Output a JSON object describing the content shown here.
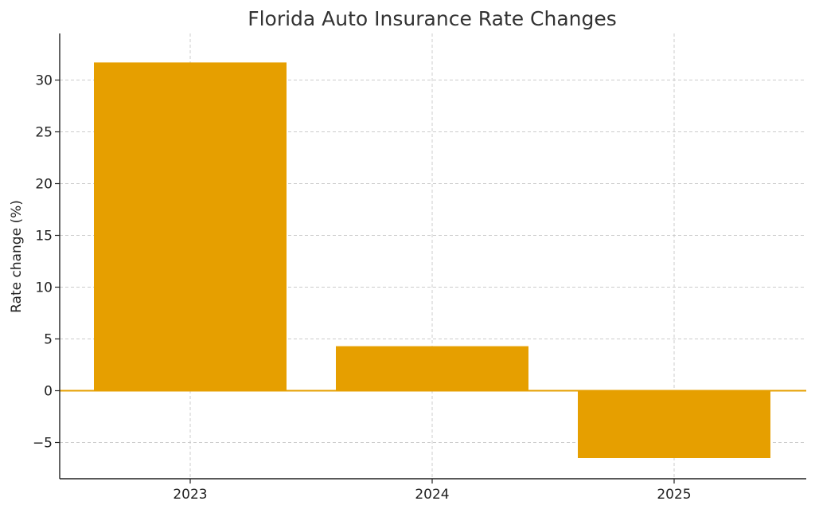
{
  "chart_data": {
    "type": "bar",
    "title": "Florida Auto Insurance Rate Changes",
    "xlabel": "",
    "ylabel": "Rate change (%)",
    "categories": [
      "2023",
      "2024",
      "2025"
    ],
    "values": [
      31.7,
      4.3,
      -6.5
    ],
    "ylim": [
      -8.5,
      34.5
    ],
    "yticks": [
      -5,
      0,
      5,
      10,
      15,
      20,
      25,
      30
    ],
    "ytick_labels": [
      "−5",
      "0",
      "5",
      "10",
      "15",
      "20",
      "25",
      "30"
    ],
    "grid": true,
    "bar_color": "#E69F00",
    "zero_line_color": "#E69F00"
  }
}
